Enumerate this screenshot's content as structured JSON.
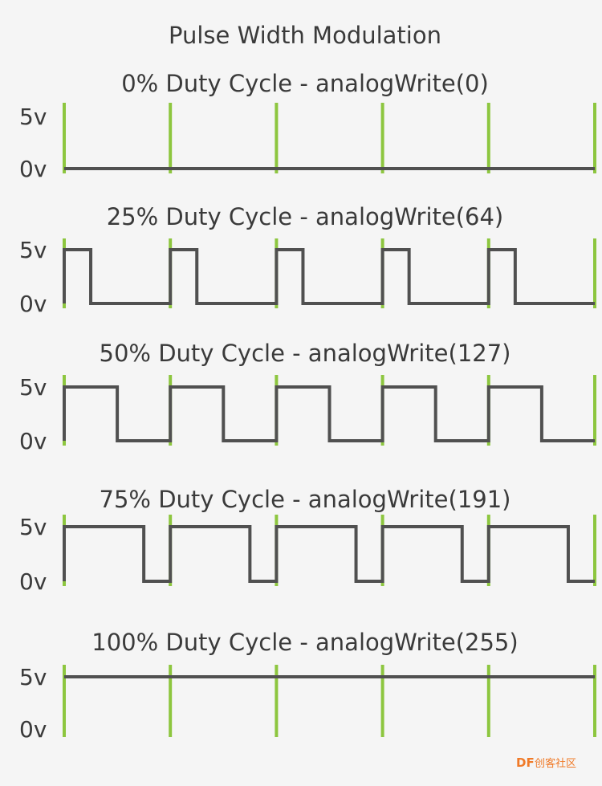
{
  "title": "Pulse Width Modulation",
  "level_labels": {
    "high": "5v",
    "low": "0v"
  },
  "colors": {
    "background": "#f5f5f5",
    "signal": "#505050",
    "period_marker": "#8dc63f",
    "text": "#3a3a3a",
    "watermark": "#f07a28"
  },
  "periods_shown": 5,
  "panels": [
    {
      "title": "0% Duty Cycle - analogWrite(0)",
      "duty": 0.0
    },
    {
      "title": "25% Duty Cycle - analogWrite(64)",
      "duty": 0.25
    },
    {
      "title": "50% Duty Cycle - analogWrite(127)",
      "duty": 0.5
    },
    {
      "title": "75% Duty Cycle - analogWrite(191)",
      "duty": 0.75
    },
    {
      "title": "100% Duty Cycle - analogWrite(255)",
      "duty": 1.0
    }
  ],
  "watermark": {
    "brand": "DF",
    "text": "创客社区"
  }
}
